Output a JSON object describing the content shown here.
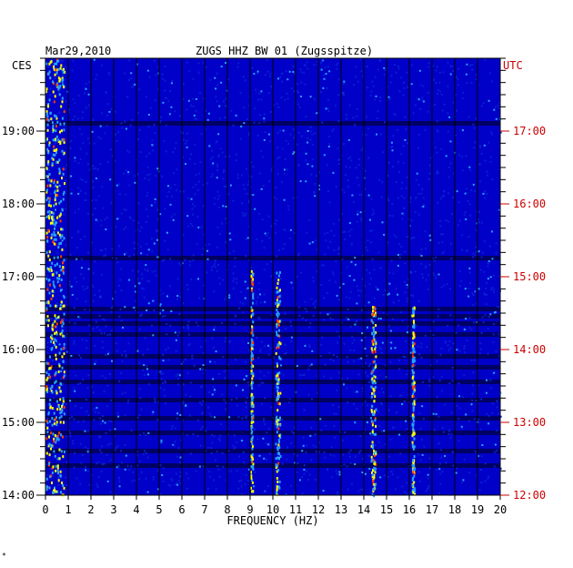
{
  "header": {
    "date": "Mar29,2010",
    "station": "ZUGS HHZ BW 01 (Zugsspitze)"
  },
  "chart_data": {
    "type": "heatmap",
    "title": "ZUGS HHZ BW 01 (Zugsspitze)",
    "date": "Mar29,2010",
    "xlabel": "FREQUENCY (HZ)",
    "xlim": [
      0,
      20
    ],
    "x_ticks": [
      "0",
      "1",
      "2",
      "3",
      "4",
      "5",
      "6",
      "7",
      "8",
      "9",
      "10",
      "11",
      "12",
      "13",
      "14",
      "15",
      "16",
      "17",
      "18",
      "19",
      "20"
    ],
    "left_axis_label": "CES",
    "right_axis_label": "UTC",
    "left_ticks": [
      "19:00",
      "18:00",
      "17:00",
      "16:00",
      "15:00",
      "14:00"
    ],
    "right_ticks": [
      "17:00",
      "16:00",
      "15:00",
      "14:00",
      "13:00",
      "12:00"
    ],
    "time_range_local": [
      "14:00",
      "19:35"
    ],
    "grid": true,
    "colors": {
      "background": "#0000c8",
      "low": "#0a1ed2",
      "mid": "#28a0ff",
      "high": "#ffff00",
      "peak": "#ff3c00",
      "band": "#000064",
      "grid": "#000000",
      "utc_text": "#cc0000"
    },
    "features": [
      {
        "freq_hz": [
          0.0,
          0.8
        ],
        "note": "strong low-frequency energy, all times"
      },
      {
        "freq_hz": [
          9.0,
          9.1
        ],
        "note": "spectral line ~16:00-17:00"
      },
      {
        "freq_hz": [
          10.1,
          10.3
        ],
        "note": "spectral line ~15:30-17:00"
      },
      {
        "freq_hz": [
          14.3,
          14.5
        ],
        "note": "bright peaks ~14:00-16:30"
      },
      {
        "freq_hz": [
          16.1,
          16.2
        ],
        "note": "spectral line ~15:00-16:30"
      }
    ]
  },
  "footnote": "*"
}
